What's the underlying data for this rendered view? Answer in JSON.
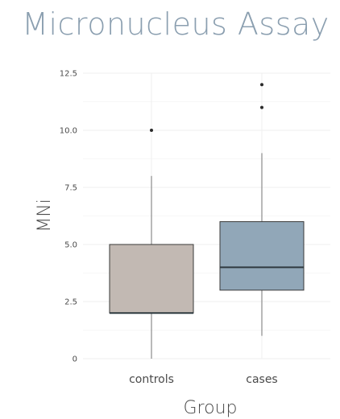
{
  "chart_data": {
    "type": "box",
    "title": "Micronucleus Assay",
    "xlabel": "Group",
    "ylabel": "MNi",
    "categories": [
      "controls",
      "cases"
    ],
    "y_ticks": [
      {
        "value": 0,
        "label": "0"
      },
      {
        "value": 2.5,
        "label": "2.5"
      },
      {
        "value": 5.0,
        "label": "5.0"
      },
      {
        "value": 7.5,
        "label": "7.5"
      },
      {
        "value": 10.0,
        "label": "10.0"
      },
      {
        "value": 12.5,
        "label": "12.5"
      }
    ],
    "ylim": [
      0,
      12.5
    ],
    "grid": true,
    "boxes": [
      {
        "name": "controls",
        "min": 0,
        "q1": 2,
        "median": 2,
        "q3": 5,
        "max": 8,
        "outliers": [
          10
        ],
        "color": "#c2b9b3"
      },
      {
        "name": "cases",
        "min": 1,
        "q1": 3,
        "median": 4,
        "q3": 6,
        "max": 9,
        "outliers": [
          11,
          12
        ],
        "color": "#91a7b8"
      }
    ]
  },
  "colors": {
    "title": "#8b9fb0",
    "grid": "#efefef",
    "whisker": "#8a8a8a",
    "box_border": "#3a3a3a",
    "median": "#2f3a40",
    "outlier": "#2b2b2b"
  }
}
